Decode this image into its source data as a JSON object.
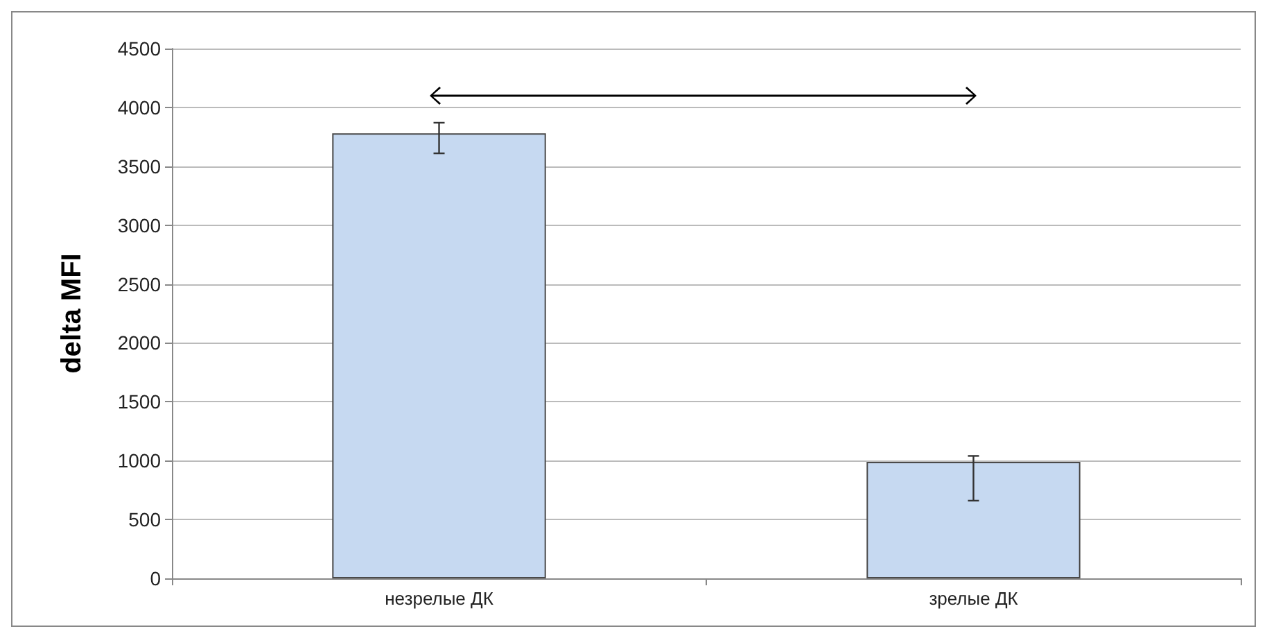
{
  "chart_data": {
    "type": "bar",
    "ylabel": "delta MFI",
    "categories": [
      "незрелые ДК",
      "зрелые ДК"
    ],
    "values": [
      3780,
      990
    ],
    "errors": [
      [
        3610,
        3870
      ],
      [
        660,
        1040
      ]
    ],
    "color": "#c6d9f1",
    "ylim": [
      0,
      4500
    ],
    "yticks": [
      0,
      500,
      1000,
      1500,
      2000,
      2500,
      3000,
      3500,
      4000,
      4500
    ],
    "grid": "y"
  }
}
